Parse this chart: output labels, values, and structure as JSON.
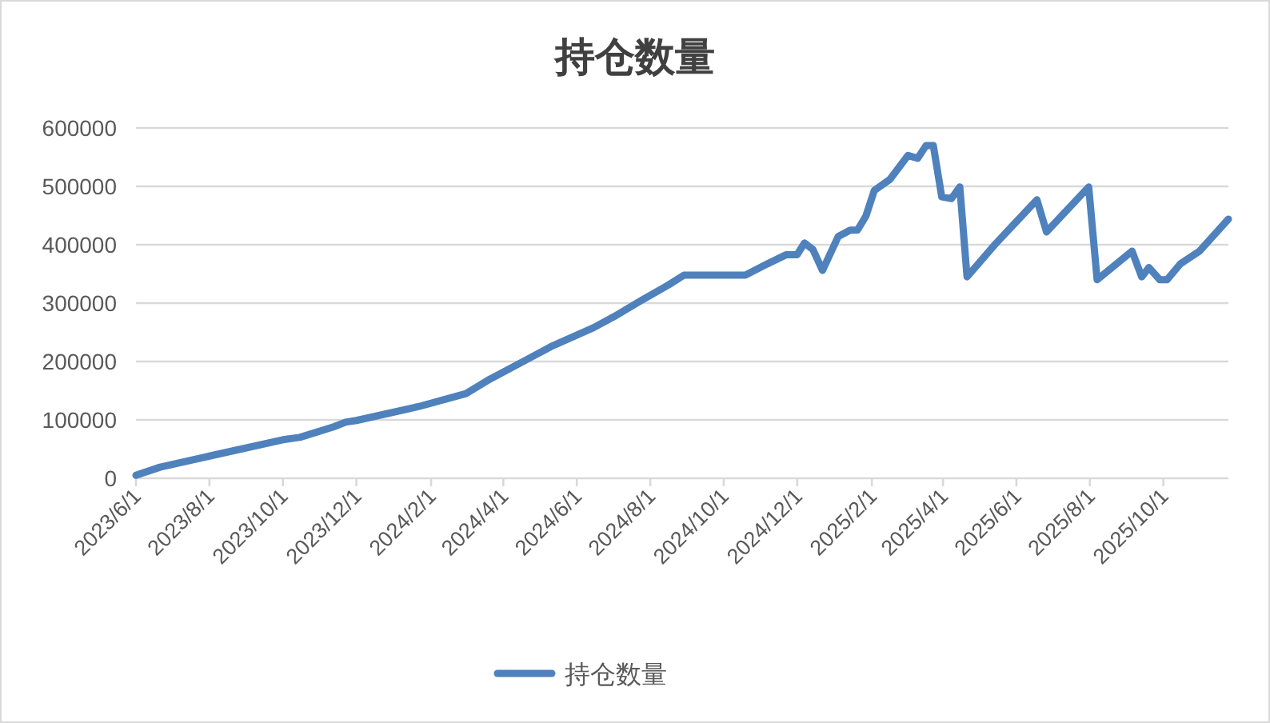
{
  "chart_data": {
    "type": "line",
    "title": "持仓数量",
    "x": [
      "2023-06-01",
      "2023-06-21",
      "2023-08-01",
      "2023-10-01",
      "2023-10-15",
      "2023-11-12",
      "2023-11-22",
      "2023-12-01",
      "2024-01-22",
      "2024-03-01",
      "2024-03-21",
      "2024-04-22",
      "2024-05-12",
      "2024-06-15",
      "2024-07-02",
      "2024-07-24",
      "2024-08-16",
      "2024-08-29",
      "2024-10-19",
      "2024-11-06",
      "2024-11-22",
      "2024-12-01",
      "2024-12-07",
      "2024-12-14",
      "2024-12-22",
      "2025-01-04",
      "2025-01-14",
      "2025-01-20",
      "2025-01-27",
      "2025-02-03",
      "2025-02-16",
      "2025-03-03",
      "2025-03-11",
      "2025-03-18",
      "2025-03-24",
      "2025-03-31",
      "2025-04-08",
      "2025-04-15",
      "2025-04-21",
      "2025-05-14",
      "2025-06-18",
      "2025-06-26",
      "2025-07-31",
      "2025-08-07",
      "2025-09-05",
      "2025-09-13",
      "2025-09-19",
      "2025-09-28",
      "2025-10-04",
      "2025-10-15",
      "2025-10-31",
      "2025-11-24"
    ],
    "series": [
      {
        "name": "持仓数量",
        "color": "#4f81bd",
        "values": [
          5000,
          19000,
          38000,
          66000,
          70000,
          88000,
          96000,
          99000,
          123000,
          145000,
          170000,
          205000,
          227000,
          258000,
          277000,
          304000,
          331000,
          348000,
          348000,
          367000,
          383000,
          383000,
          403000,
          392000,
          356000,
          414000,
          425000,
          425000,
          449000,
          493000,
          512000,
          553000,
          548000,
          570000,
          570000,
          482000,
          479000,
          499000,
          345000,
          400000,
          477000,
          422000,
          499000,
          340000,
          389000,
          345000,
          361000,
          340000,
          340000,
          367000,
          389000,
          444000
        ]
      }
    ],
    "xlim": [
      "2023-06-01",
      "2025-11-24"
    ],
    "xticks": [
      {
        "value": "2023-06-01",
        "label": "2023/6/1"
      },
      {
        "value": "2023-08-01",
        "label": "2023/8/1"
      },
      {
        "value": "2023-10-01",
        "label": "2023/10/1"
      },
      {
        "value": "2023-12-01",
        "label": "2023/12/1"
      },
      {
        "value": "2024-02-01",
        "label": "2024/2/1"
      },
      {
        "value": "2024-04-01",
        "label": "2024/4/1"
      },
      {
        "value": "2024-06-01",
        "label": "2024/6/1"
      },
      {
        "value": "2024-08-01",
        "label": "2024/8/1"
      },
      {
        "value": "2024-10-01",
        "label": "2024/10/1"
      },
      {
        "value": "2024-12-01",
        "label": "2024/12/1"
      },
      {
        "value": "2025-02-01",
        "label": "2025/2/1"
      },
      {
        "value": "2025-04-01",
        "label": "2025/4/1"
      },
      {
        "value": "2025-06-01",
        "label": "2025/6/1"
      },
      {
        "value": "2025-08-01",
        "label": "2025/8/1"
      },
      {
        "value": "2025-10-01",
        "label": "2025/10/1"
      }
    ],
    "ylim": [
      0,
      600000
    ],
    "yticks": [
      0,
      100000,
      200000,
      300000,
      400000,
      500000,
      600000
    ],
    "grid": "y",
    "legend": "bottom"
  }
}
